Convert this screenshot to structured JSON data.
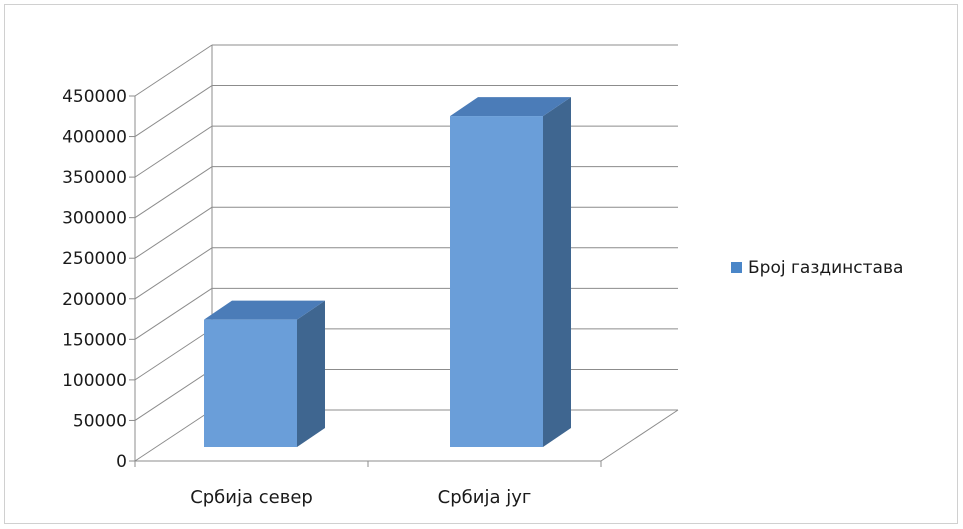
{
  "chart_data": {
    "type": "bar",
    "style": "3d-column",
    "title": "",
    "xlabel": "",
    "ylabel": "",
    "categories": [
      "Србија север",
      "Србија југ"
    ],
    "series": [
      {
        "name": "Број газдинстава",
        "values": [
          157000,
          408000
        ]
      }
    ],
    "ylim": [
      0,
      450000
    ],
    "yticks": [
      "0",
      "50000",
      "100000",
      "150000",
      "200000",
      "250000",
      "300000",
      "350000",
      "400000",
      "450000"
    ],
    "grid": true,
    "legend_position": "right",
    "colors": {
      "bar_front": "#6a9ed9",
      "bar_top": "#4b7cb8",
      "bar_side": "#3f6690",
      "grid": "#8c8c8c",
      "legend_swatch": "#4a86c8"
    }
  }
}
